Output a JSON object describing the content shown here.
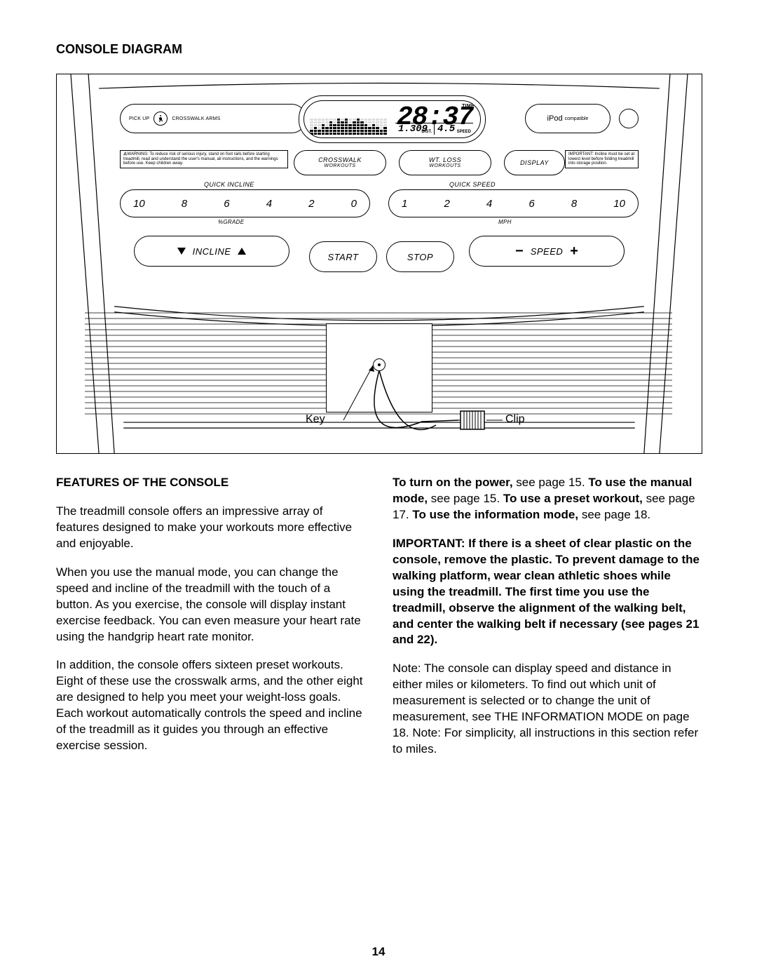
{
  "page_number": "14",
  "title_diagram": "CONSOLE DIAGRAM",
  "title_features": "FEATURES OF THE CONSOLE",
  "diagram": {
    "pickup_label": "PICK UP",
    "crosswalk_arms_label": "CROSSWALK ARMS",
    "ipod_label": "iPod",
    "ipod_sub": "compatible",
    "lcd": {
      "time_value": "28:37",
      "time_label": "TIME",
      "dist_value": "1.309",
      "dist_label": "DIST.",
      "speed_value": "4.5",
      "speed_label": "SPEED",
      "bar_heights": [
        2,
        3,
        2,
        4,
        3,
        5,
        4,
        6,
        5,
        6,
        4,
        5,
        6,
        5,
        4,
        3,
        4,
        3,
        2,
        3
      ]
    },
    "warning_text": "WARNING: To reduce risk of serious injury, stand on foot rails before starting treadmill, read and understand the user's manual, all instructions, and the warnings before use. Keep children away.",
    "important_text": "IMPORTANT: Incline must be set at lowest level before folding treadmill into storage position.",
    "btn_crosswalk_top": "CROSSWALK",
    "btn_crosswalk_bot": "WORKOUTS",
    "btn_wtloss_top": "WT. LOSS",
    "btn_wtloss_bot": "WORKOUTS",
    "btn_display": "DISPLAY",
    "quick_incline_label": "QUICK INCLINE",
    "quick_speed_label": "QUICK SPEED",
    "incline_nums": [
      "10",
      "8",
      "6",
      "4",
      "2",
      "0"
    ],
    "speed_nums": [
      "1",
      "2",
      "4",
      "6",
      "8",
      "10"
    ],
    "grade_unit": "%GRADE",
    "mph_unit": "MPH",
    "incline_label": "INCLINE",
    "speed_label": "SPEED",
    "start_label": "START",
    "stop_label": "STOP",
    "key_annot": "Key",
    "clip_annot": "Clip"
  },
  "paragraphs": {
    "p1": "The treadmill console offers an impressive array of features designed to make your workouts more effective and enjoyable.",
    "p2": "When you use the manual mode, you can change the speed and incline of the treadmill with the touch of a button. As you exercise, the console will display instant exercise feedback. You can even measure your heart rate using the handgrip heart rate monitor.",
    "p3": "In addition, the console offers sixteen preset workouts. Eight of these use the crosswalk arms, and the other eight are designed to help you meet your weight-loss goals. Each workout automatically controls the speed and incline of the treadmill as it guides you through an effective exercise session.",
    "r1a": "To turn on the power,",
    "r1b": " see page 15. ",
    "r1c": "To use the manual mode,",
    "r1d": " see page 15. ",
    "r1e": "To use a preset workout,",
    "r1f": " see page 17. ",
    "r1g": "To use the information mode,",
    "r1h": " see page 18.",
    "r2": "IMPORTANT: If there is a sheet of clear plastic on the console, remove the plastic. To prevent damage to the walking platform, wear clean athletic shoes while using the treadmill. The first time you use the treadmill, observe the alignment of the walking belt, and center the walking belt if necessary (see pages 21 and 22).",
    "r3": "Note: The console can display speed and distance in either miles or kilometers. To find out which unit of measurement is selected or to change the unit of measurement, see THE INFORMATION MODE on page 18. Note: For simplicity, all instructions in this section refer to miles."
  }
}
